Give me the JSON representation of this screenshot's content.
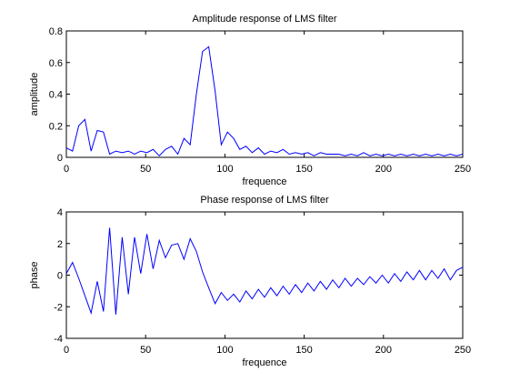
{
  "chart_data": [
    {
      "type": "line",
      "title": "Amplitude response of LMS filter",
      "xlabel": "frequence",
      "ylabel": "amplitude",
      "xlim": [
        0,
        250
      ],
      "ylim": [
        0,
        0.8
      ],
      "xticks": [
        0,
        50,
        100,
        150,
        200,
        250
      ],
      "xtick_labels": [
        "0",
        "50",
        "100",
        "150",
        "200",
        "250"
      ],
      "yticks": [
        0,
        0.2,
        0.4,
        0.6,
        0.8
      ],
      "ytick_labels": [
        "0",
        "0.2",
        "0.4",
        "0.6",
        "0.8"
      ],
      "grid": false,
      "line_color": "#0000ff",
      "x": [
        0,
        3.9,
        7.8,
        11.7,
        15.6,
        19.5,
        23.4,
        27.3,
        31.2,
        35.2,
        39.1,
        43,
        46.9,
        50.8,
        54.7,
        58.6,
        62.5,
        66.4,
        70.3,
        74.2,
        78.1,
        82,
        85.9,
        89.8,
        93.8,
        97.7,
        101.6,
        105.5,
        109.4,
        113.3,
        117.2,
        121.1,
        125,
        128.9,
        132.8,
        136.7,
        140.6,
        144.5,
        148.4,
        152.3,
        156.2,
        160.2,
        164.1,
        168,
        171.9,
        175.8,
        179.7,
        183.6,
        187.5,
        191.4,
        195.3,
        199.2,
        203.1,
        207,
        210.9,
        214.8,
        218.8,
        222.7,
        226.6,
        230.5,
        234.4,
        238.3,
        242.2,
        246.1,
        250
      ],
      "y": [
        0.06,
        0.04,
        0.2,
        0.24,
        0.04,
        0.17,
        0.16,
        0.02,
        0.04,
        0.03,
        0.04,
        0.02,
        0.04,
        0.03,
        0.05,
        0.01,
        0.05,
        0.07,
        0.02,
        0.12,
        0.08,
        0.4,
        0.67,
        0.7,
        0.42,
        0.08,
        0.16,
        0.12,
        0.05,
        0.07,
        0.03,
        0.06,
        0.02,
        0.04,
        0.03,
        0.05,
        0.02,
        0.03,
        0.02,
        0.03,
        0.01,
        0.03,
        0.02,
        0.02,
        0.02,
        0.01,
        0.02,
        0.01,
        0.03,
        0.01,
        0.02,
        0.01,
        0.02,
        0.01,
        0.02,
        0.01,
        0.02,
        0.01,
        0.02,
        0.01,
        0.02,
        0.01,
        0.02,
        0.01,
        0.02
      ]
    },
    {
      "type": "line",
      "title": "Phase response of LMS filter",
      "xlabel": "frequence",
      "ylabel": "phase",
      "xlim": [
        0,
        250
      ],
      "ylim": [
        -4,
        4
      ],
      "xticks": [
        0,
        50,
        100,
        150,
        200,
        250
      ],
      "xtick_labels": [
        "0",
        "50",
        "100",
        "150",
        "200",
        "250"
      ],
      "yticks": [
        -4,
        -2,
        0,
        2,
        4
      ],
      "ytick_labels": [
        "-4",
        "-2",
        "0",
        "2",
        "4"
      ],
      "grid": false,
      "line_color": "#0000ff",
      "x": [
        0,
        3.9,
        7.8,
        11.7,
        15.6,
        19.5,
        23.4,
        27.3,
        31.2,
        35.2,
        39.1,
        43,
        46.9,
        50.8,
        54.7,
        58.6,
        62.5,
        66.4,
        70.3,
        74.2,
        78.1,
        82,
        85.9,
        89.8,
        93.8,
        97.7,
        101.6,
        105.5,
        109.4,
        113.3,
        117.2,
        121.1,
        125,
        128.9,
        132.8,
        136.7,
        140.6,
        144.5,
        148.4,
        152.3,
        156.2,
        160.2,
        164.1,
        168,
        171.9,
        175.8,
        179.7,
        183.6,
        187.5,
        191.4,
        195.3,
        199.2,
        203.1,
        207,
        210.9,
        214.8,
        218.8,
        222.7,
        226.6,
        230.5,
        234.4,
        238.3,
        242.2,
        246.1,
        250
      ],
      "y": [
        0.1,
        0.8,
        -0.2,
        -1.3,
        -2.4,
        -0.4,
        -2.3,
        3.0,
        -2.5,
        2.4,
        -1.2,
        2.4,
        0.1,
        2.6,
        0.4,
        2.2,
        1.1,
        1.9,
        2.0,
        1.0,
        2.3,
        1.5,
        0.2,
        -0.8,
        -1.8,
        -1.1,
        -1.6,
        -1.2,
        -1.7,
        -1.0,
        -1.5,
        -0.9,
        -1.4,
        -0.8,
        -1.3,
        -0.7,
        -1.2,
        -0.6,
        -1.1,
        -0.5,
        -1.0,
        -0.4,
        -0.9,
        -0.3,
        -0.8,
        -0.2,
        -0.7,
        -0.2,
        -0.6,
        -0.1,
        -0.5,
        0.0,
        -0.5,
        0.1,
        -0.4,
        0.2,
        -0.3,
        0.3,
        -0.3,
        0.3,
        -0.2,
        0.4,
        -0.3,
        0.3,
        0.5
      ]
    }
  ]
}
